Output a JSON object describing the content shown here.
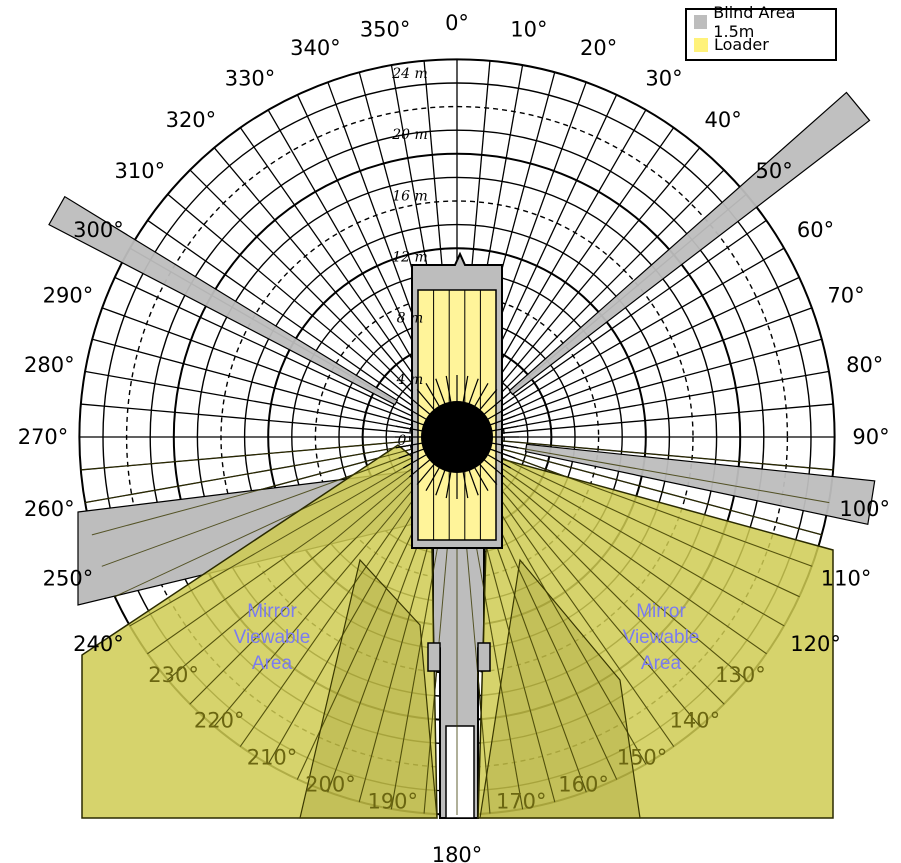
{
  "diagram": {
    "angle_labels": [
      "0°",
      "10°",
      "20°",
      "30°",
      "40°",
      "50°",
      "60°",
      "70°",
      "80°",
      "90°",
      "100°",
      "110°",
      "120°",
      "130°",
      "140°",
      "150°",
      "160°",
      "170°",
      "180°",
      "190°",
      "200°",
      "210°",
      "220°",
      "230°",
      "240°",
      "250°",
      "260°",
      "270°",
      "280°",
      "290°",
      "300°",
      "310°",
      "320°",
      "330°",
      "340°",
      "350°"
    ],
    "range_labels": [
      "0",
      "4 m",
      "8 m",
      "12 m",
      "16 m",
      "20 m",
      "24 m"
    ],
    "mirror_left": [
      "Mirror",
      "Viewable",
      "Area"
    ],
    "mirror_right": [
      "Mirror",
      "Viewable",
      "Area"
    ]
  },
  "legend": {
    "items": [
      {
        "label": "Blind Area 1.5m",
        "color": "#bdbdbd"
      },
      {
        "label": "Loader",
        "color": "#fff27a"
      }
    ]
  },
  "colors": {
    "blind": "#bdbdbd",
    "loader": "#fff49a",
    "viewable": "#cfcb52",
    "grid": "#000000"
  }
}
